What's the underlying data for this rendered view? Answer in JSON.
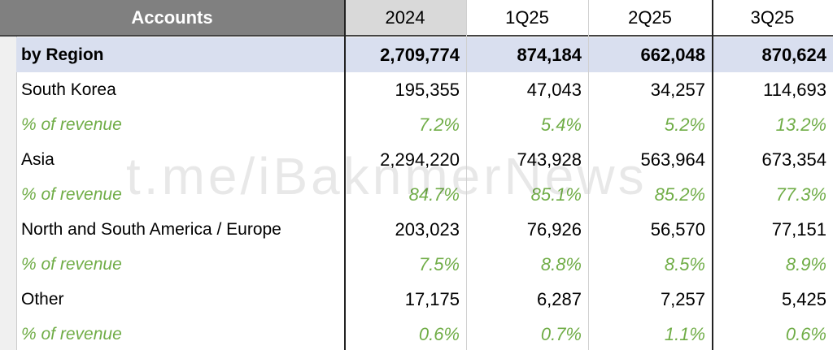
{
  "header": {
    "title": "Accounts",
    "columns": [
      "2024",
      "1Q25",
      "2Q25",
      "3Q25"
    ]
  },
  "rows": [
    {
      "label": "by Region",
      "values": [
        "2,709,774",
        "874,184",
        "662,048",
        "870,624"
      ]
    },
    {
      "label": "South Korea",
      "values": [
        "195,355",
        "47,043",
        "34,257",
        "114,693"
      ]
    },
    {
      "label": "% of revenue",
      "values": [
        "7.2%",
        "5.4%",
        "5.2%",
        "13.2%"
      ]
    },
    {
      "label": "Asia",
      "values": [
        "2,294,220",
        "743,928",
        "563,964",
        "673,354"
      ]
    },
    {
      "label": "% of revenue",
      "values": [
        "84.7%",
        "85.1%",
        "85.2%",
        "77.3%"
      ]
    },
    {
      "label": "North and South America / Europe",
      "values": [
        "203,023",
        "76,926",
        "56,570",
        "77,151"
      ]
    },
    {
      "label": "% of revenue",
      "values": [
        "7.5%",
        "8.8%",
        "8.5%",
        "8.9%"
      ]
    },
    {
      "label": "Other",
      "values": [
        "17,175",
        "6,287",
        "7,257",
        "5,425"
      ]
    },
    {
      "label": "% of revenue",
      "values": [
        "0.6%",
        "0.7%",
        "1.1%",
        "0.6%"
      ]
    }
  ],
  "watermark": "t.me/iBaknmerNews"
}
